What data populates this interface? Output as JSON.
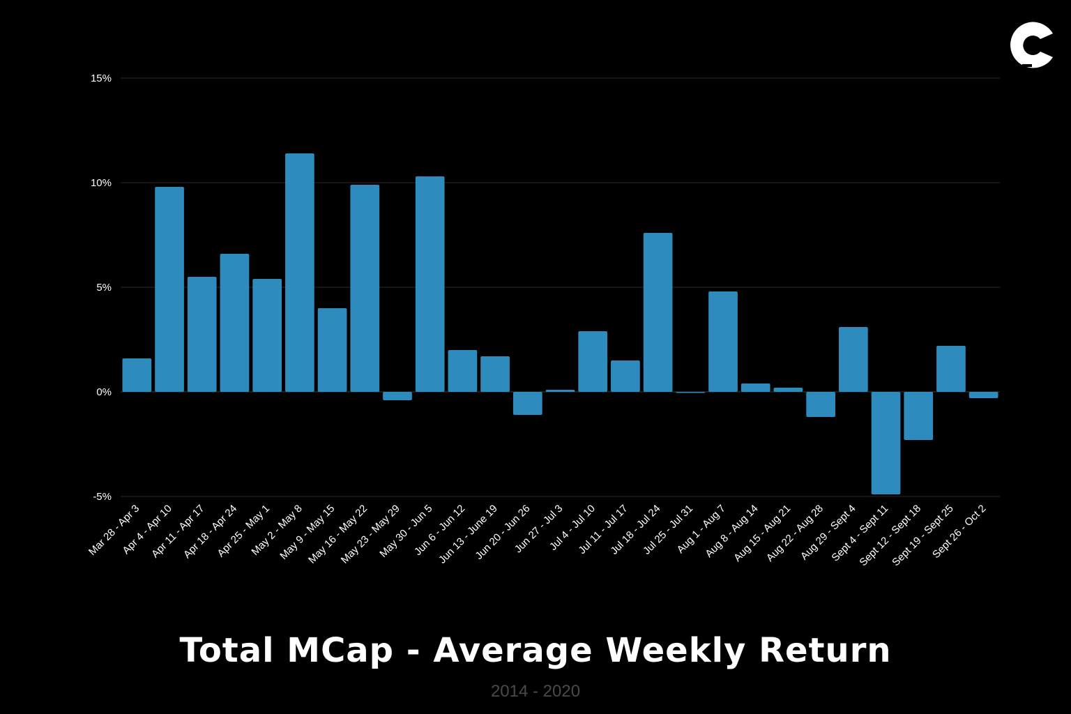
{
  "chart_data": {
    "type": "bar",
    "title": "Total MCap - Average Weekly Return",
    "subtitle": "2014 - 2020",
    "xlabel": "",
    "ylabel": "",
    "ylim": [
      -5,
      15
    ],
    "yticks": [
      15,
      10,
      5,
      0,
      -5
    ],
    "ytick_labels": [
      "15%",
      "10%",
      "5%",
      "0%",
      "-5%"
    ],
    "grid": true,
    "bar_color": "#2e8bbd",
    "categories": [
      "Mar 28 - Apr 3",
      "Apr 4 - Apr 10",
      "Apr 11 - Apr 17",
      "Apr 18 - Apr 24",
      "Apr 25 - May 1",
      "May 2 - May 8",
      "May 9 - May 15",
      "May 16 - May 22",
      "May 23 - May 29",
      "May 30 - Jun 5",
      "Jun 6 - Jun 12",
      "Jun 13 - June 19",
      "Jun 20 - Jun 26",
      "Jun 27 - Jul 3",
      "Jul 4 - Jul 10",
      "Jul 11 - Jul 17",
      "Jul 18 - Jul 24",
      "Jul 25 - Jul 31",
      "Aug 1 - Aug 7",
      "Aug 8 - Aug 14",
      "Aug 15 - Aug 21",
      "Aug 22 - Aug 28",
      "Aug 29 - Sept 4",
      "Sept 4 - Sept 11",
      "Sept 12 - Sept 18",
      "Sept 19 - Sept 25",
      "Sept 26 - Oct 2"
    ],
    "values": [
      1.6,
      9.8,
      5.5,
      6.6,
      5.4,
      11.4,
      4.0,
      9.9,
      -0.4,
      10.3,
      2.0,
      1.7,
      -1.1,
      0.1,
      2.9,
      1.5,
      7.6,
      0.0,
      4.8,
      0.4,
      0.2,
      -1.2,
      3.1,
      -4.9,
      -2.3,
      2.2,
      -0.3
    ]
  },
  "logo": {
    "name": "C",
    "color": "#ffffff"
  }
}
